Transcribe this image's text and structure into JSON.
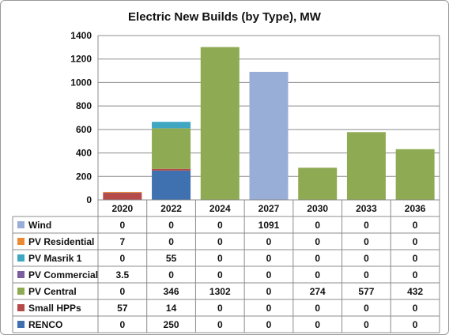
{
  "chart_data": {
    "type": "bar",
    "stacked": true,
    "title": "Electric New Builds (by Type), MW",
    "categories": [
      "2020",
      "2022",
      "2024",
      "2027",
      "2030",
      "2033",
      "2036"
    ],
    "ylim": [
      0,
      1400
    ],
    "yticks": [
      0,
      200,
      400,
      600,
      800,
      1000,
      1200,
      1400
    ],
    "grid": true,
    "legend": "data-table-left",
    "series": [
      {
        "name": "RENCO",
        "color": "#3f70b0",
        "values": [
          0,
          250,
          0,
          0,
          0,
          0,
          0
        ],
        "labels": [
          "0",
          "250",
          "0",
          "0",
          "0",
          "0",
          "0"
        ]
      },
      {
        "name": "Small HPPs",
        "color": "#b54a48",
        "values": [
          57,
          14,
          0,
          0,
          0,
          0,
          0
        ],
        "labels": [
          "57",
          "14",
          "0",
          "0",
          "0",
          "0",
          "0"
        ]
      },
      {
        "name": "PV Central",
        "color": "#8eaa52",
        "values": [
          0,
          346,
          1302,
          0,
          274,
          577,
          432
        ],
        "labels": [
          "0",
          "346",
          "1302",
          "0",
          "274",
          "577",
          "432"
        ]
      },
      {
        "name": "PV Commercial",
        "color": "#7a5ea0",
        "values": [
          3.5,
          0,
          0,
          0,
          0,
          0,
          0
        ],
        "labels": [
          "3.5",
          "0",
          "0",
          "0",
          "0",
          "0",
          "0"
        ]
      },
      {
        "name": "PV Masrik 1",
        "color": "#3fa7c2",
        "values": [
          0,
          55,
          0,
          0,
          0,
          0,
          0
        ],
        "labels": [
          "0",
          "55",
          "0",
          "0",
          "0",
          "0",
          "0"
        ]
      },
      {
        "name": "PV Residential",
        "color": "#ec8a34",
        "values": [
          7,
          0,
          0,
          0,
          0,
          0,
          0
        ],
        "labels": [
          "7",
          "0",
          "0",
          "0",
          "0",
          "0",
          "0"
        ]
      },
      {
        "name": "Wind",
        "color": "#98aed6",
        "values": [
          0,
          0,
          0,
          1091,
          0,
          0,
          0
        ],
        "labels": [
          "0",
          "0",
          "0",
          "1091",
          "0",
          "0",
          "0"
        ]
      }
    ],
    "table_row_order": [
      "Wind",
      "PV Residential",
      "PV Masrik 1",
      "PV Commercial",
      "PV Central",
      "Small HPPs",
      "RENCO"
    ]
  }
}
